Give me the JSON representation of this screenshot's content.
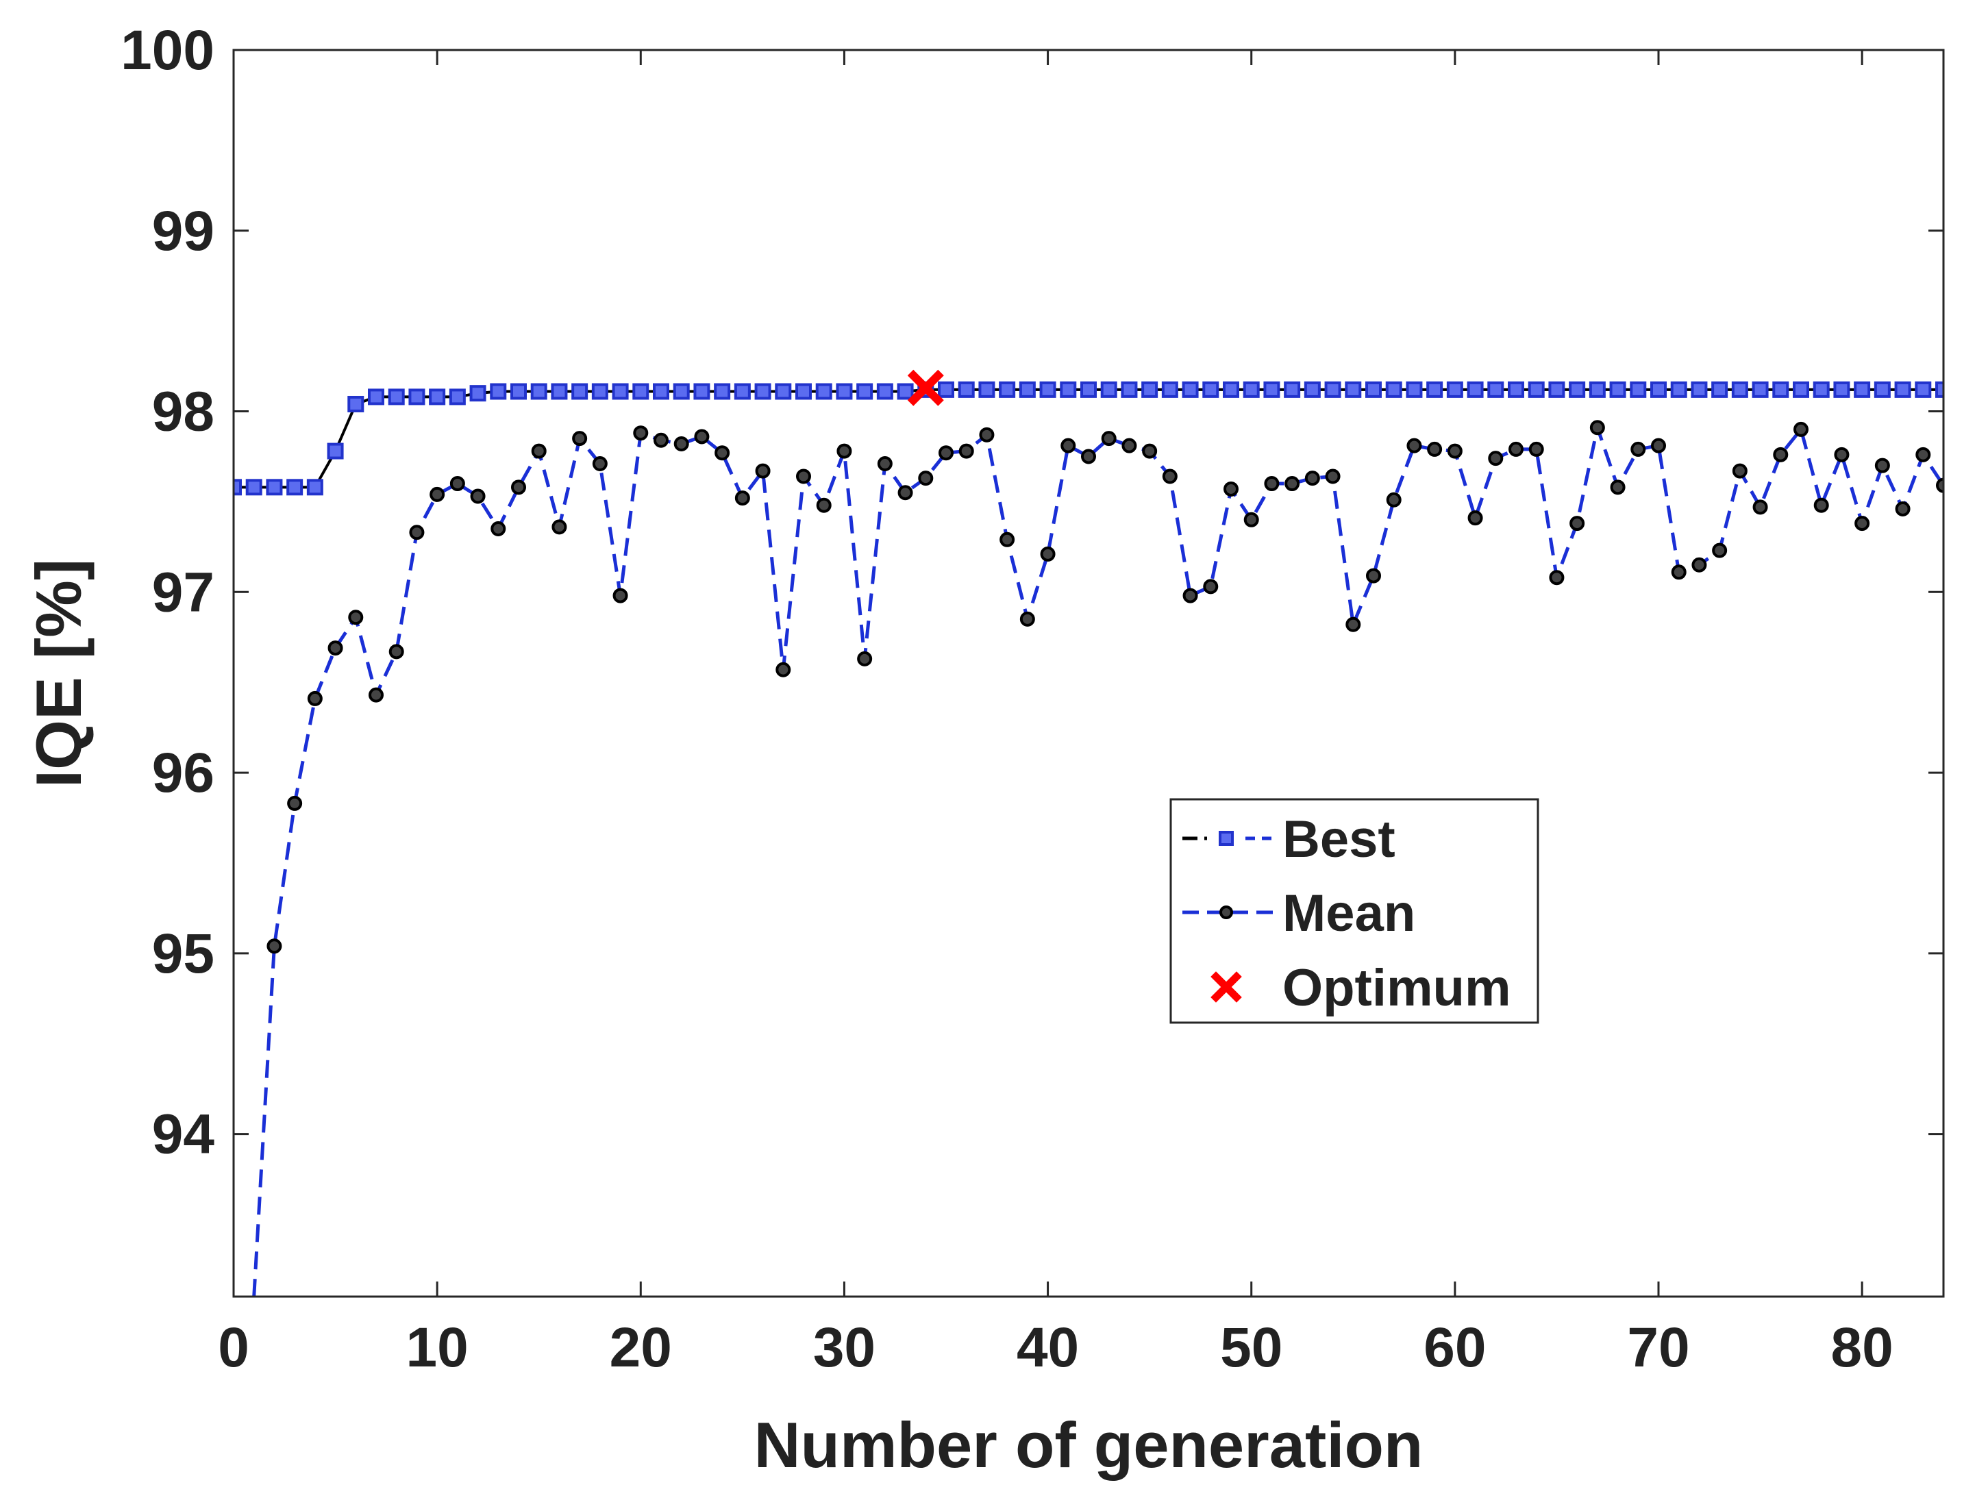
{
  "chart_data": {
    "type": "line",
    "title": "",
    "xlabel": "Number of generation",
    "ylabel": "IQE [%]",
    "xlim": [
      0,
      84
    ],
    "ylim": [
      93.1,
      100
    ],
    "xticks": [
      0,
      10,
      20,
      30,
      40,
      50,
      60,
      70,
      80
    ],
    "yticks": [
      94,
      95,
      96,
      97,
      98,
      99,
      100
    ],
    "xtick_labels": [
      "0",
      "10",
      "20",
      "30",
      "40",
      "50",
      "60",
      "70",
      "80"
    ],
    "ytick_labels": [
      "94",
      "95",
      "96",
      "97",
      "98",
      "99",
      "100"
    ],
    "grid": false,
    "legend_position": "center-right",
    "series": [
      {
        "name": "Best",
        "line_color": "#000000",
        "marker": "square",
        "marker_color": "#3344dd",
        "x": [
          0,
          1,
          2,
          3,
          4,
          5,
          6,
          7,
          8,
          9,
          10,
          11,
          12,
          13,
          14,
          15,
          16,
          17,
          18,
          19,
          20,
          21,
          22,
          23,
          24,
          25,
          26,
          27,
          28,
          29,
          30,
          31,
          32,
          33,
          34,
          35,
          36,
          37,
          38,
          39,
          40,
          41,
          42,
          43,
          44,
          45,
          46,
          47,
          48,
          49,
          50,
          51,
          52,
          53,
          54,
          55,
          56,
          57,
          58,
          59,
          60,
          61,
          62,
          63,
          64,
          65,
          66,
          67,
          68,
          69,
          70,
          71,
          72,
          73,
          74,
          75,
          76,
          77,
          78,
          79,
          80,
          81,
          82,
          83,
          84
        ],
        "values": [
          97.58,
          97.58,
          97.58,
          97.58,
          97.58,
          97.78,
          98.04,
          98.08,
          98.08,
          98.08,
          98.08,
          98.08,
          98.1,
          98.11,
          98.11,
          98.11,
          98.11,
          98.11,
          98.11,
          98.11,
          98.11,
          98.11,
          98.11,
          98.11,
          98.11,
          98.11,
          98.11,
          98.11,
          98.11,
          98.11,
          98.11,
          98.11,
          98.11,
          98.11,
          98.12,
          98.12,
          98.12,
          98.12,
          98.12,
          98.12,
          98.12,
          98.12,
          98.12,
          98.12,
          98.12,
          98.12,
          98.12,
          98.12,
          98.12,
          98.12,
          98.12,
          98.12,
          98.12,
          98.12,
          98.12,
          98.12,
          98.12,
          98.12,
          98.12,
          98.12,
          98.12,
          98.12,
          98.12,
          98.12,
          98.12,
          98.12,
          98.12,
          98.12,
          98.12,
          98.12,
          98.12,
          98.12,
          98.12,
          98.12,
          98.12,
          98.12,
          98.12,
          98.12,
          98.12,
          98.12,
          98.12,
          98.12,
          98.12,
          98.12,
          98.12
        ]
      },
      {
        "name": "Mean",
        "line_color": "#1a2fd6",
        "marker": "circle",
        "marker_color": "#000000",
        "x": [
          1,
          2,
          3,
          4,
          5,
          6,
          7,
          8,
          9,
          10,
          11,
          12,
          13,
          14,
          15,
          16,
          17,
          18,
          19,
          20,
          21,
          22,
          23,
          24,
          25,
          26,
          27,
          28,
          29,
          30,
          31,
          32,
          33,
          34,
          35,
          36,
          37,
          38,
          39,
          40,
          41,
          42,
          43,
          44,
          45,
          46,
          47,
          48,
          49,
          50,
          51,
          52,
          53,
          54,
          55,
          56,
          57,
          58,
          59,
          60,
          61,
          62,
          63,
          64,
          65,
          66,
          67,
          68,
          69,
          70,
          71,
          72,
          73,
          74,
          75,
          76,
          77,
          78,
          79,
          80,
          81,
          82,
          83,
          84
        ],
        "values": [
          93.1,
          95.04,
          95.83,
          96.41,
          96.69,
          96.86,
          96.43,
          96.67,
          97.33,
          97.54,
          97.6,
          97.53,
          97.35,
          97.58,
          97.78,
          97.36,
          97.85,
          97.71,
          96.98,
          97.88,
          97.84,
          97.82,
          97.86,
          97.77,
          97.52,
          97.67,
          96.57,
          97.64,
          97.48,
          97.78,
          96.63,
          97.71,
          97.55,
          97.63,
          97.77,
          97.78,
          97.87,
          97.29,
          96.85,
          97.21,
          97.81,
          97.75,
          97.85,
          97.81,
          97.78,
          97.64,
          96.98,
          97.03,
          97.57,
          97.4,
          97.6,
          97.6,
          97.63,
          97.64,
          96.82,
          97.09,
          97.51,
          97.81,
          97.79,
          97.78,
          97.41,
          97.74,
          97.79,
          97.79,
          97.08,
          97.38,
          97.91,
          97.58,
          97.79,
          97.81,
          97.11,
          97.15,
          97.23,
          97.67,
          97.47,
          97.76,
          97.9,
          97.48,
          97.76,
          97.38,
          97.7,
          97.46,
          97.76,
          97.59
        ]
      },
      {
        "name": "Optimum",
        "marker": "x",
        "marker_color": "#ff0000",
        "x": [
          34
        ],
        "values": [
          98.13
        ]
      }
    ]
  }
}
